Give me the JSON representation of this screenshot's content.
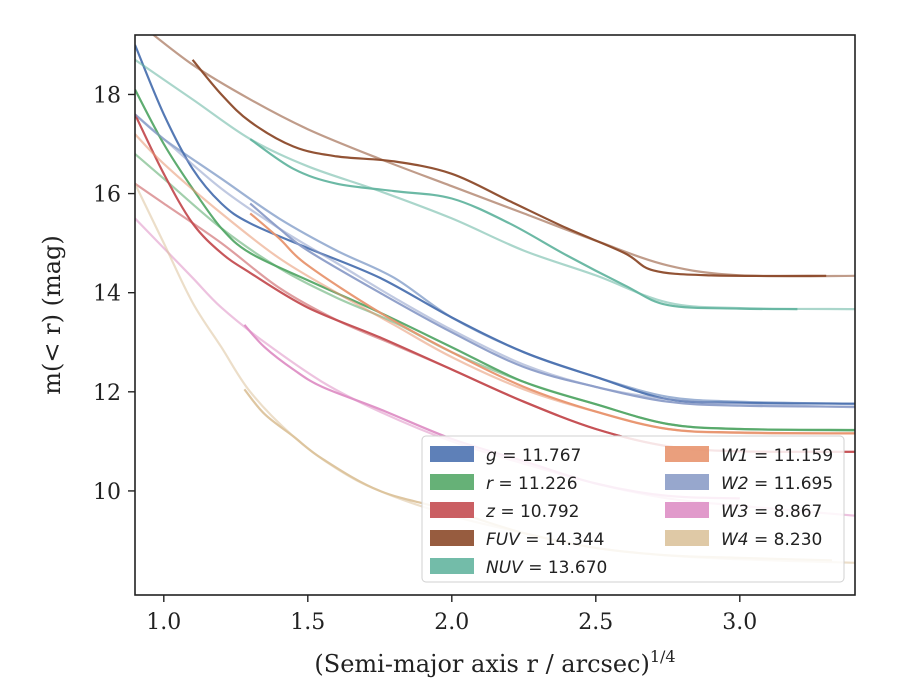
{
  "chart_data": {
    "type": "line",
    "xlabel": "(Semi-major axis r / arcsec)",
    "xlabel_sup": "1/4",
    "ylabel": "m(< r) (mag)",
    "xlim": [
      0.9,
      3.4
    ],
    "ylim": [
      19.2,
      7.9
    ],
    "y_inverted": true,
    "x_ticks": [
      1.0,
      1.5,
      2.0,
      2.5,
      3.0
    ],
    "x_tick_labels": [
      "1.0",
      "1.5",
      "2.0",
      "2.5",
      "3.0"
    ],
    "y_ticks": [
      10,
      12,
      14,
      16,
      18
    ],
    "y_tick_labels": [
      "10",
      "12",
      "14",
      "16",
      "18"
    ],
    "grid": false,
    "legend_position": "lower-right",
    "series": [
      {
        "name": "g = 11.767",
        "color": "#4c72b0",
        "profile": [
          [
            0.9,
            19.0
          ],
          [
            1.0,
            17.6
          ],
          [
            1.1,
            16.5
          ],
          [
            1.2,
            15.8
          ],
          [
            1.3,
            15.4
          ],
          [
            1.5,
            14.9
          ],
          [
            1.75,
            14.3
          ],
          [
            2.0,
            13.5
          ],
          [
            2.25,
            12.8
          ],
          [
            2.5,
            12.3
          ],
          [
            2.75,
            11.85
          ],
          [
            3.0,
            11.78
          ],
          [
            3.4,
            11.76
          ]
        ],
        "fit": [
          [
            0.9,
            17.6
          ],
          [
            1.0,
            17.1
          ],
          [
            1.2,
            16.3
          ],
          [
            1.4,
            15.5
          ],
          [
            1.6,
            14.85
          ],
          [
            1.8,
            14.3
          ],
          [
            2.0,
            13.5
          ],
          [
            2.25,
            12.8
          ],
          [
            2.5,
            12.3
          ],
          [
            2.75,
            11.9
          ],
          [
            3.0,
            11.8
          ],
          [
            3.4,
            11.76
          ]
        ]
      },
      {
        "name": "r = 11.226",
        "color": "#55a868",
        "profile": [
          [
            0.9,
            18.1
          ],
          [
            1.0,
            17.0
          ],
          [
            1.1,
            16.1
          ],
          [
            1.2,
            15.3
          ],
          [
            1.3,
            14.8
          ],
          [
            1.5,
            14.25
          ],
          [
            1.75,
            13.6
          ],
          [
            2.0,
            12.9
          ],
          [
            2.25,
            12.2
          ],
          [
            2.5,
            11.75
          ],
          [
            2.75,
            11.35
          ],
          [
            3.0,
            11.25
          ],
          [
            3.4,
            11.23
          ]
        ],
        "fit": [
          [
            0.9,
            16.8
          ],
          [
            1.0,
            16.3
          ],
          [
            1.2,
            15.3
          ],
          [
            1.4,
            14.5
          ],
          [
            1.6,
            13.9
          ],
          [
            1.8,
            13.4
          ],
          [
            2.0,
            12.8
          ],
          [
            2.25,
            12.2
          ],
          [
            2.5,
            11.75
          ],
          [
            2.75,
            11.35
          ],
          [
            3.0,
            11.25
          ],
          [
            3.4,
            11.22
          ]
        ]
      },
      {
        "name": "z = 10.792",
        "color": "#c44e52",
        "profile": [
          [
            0.9,
            17.6
          ],
          [
            1.0,
            16.4
          ],
          [
            1.1,
            15.4
          ],
          [
            1.2,
            14.8
          ],
          [
            1.3,
            14.4
          ],
          [
            1.5,
            13.7
          ],
          [
            1.75,
            13.1
          ],
          [
            2.0,
            12.45
          ],
          [
            2.25,
            11.8
          ],
          [
            2.5,
            11.25
          ],
          [
            2.75,
            10.9
          ],
          [
            3.0,
            10.8
          ],
          [
            3.4,
            10.79
          ]
        ],
        "fit": [
          [
            0.9,
            16.2
          ],
          [
            1.0,
            15.8
          ],
          [
            1.2,
            15.0
          ],
          [
            1.4,
            14.1
          ],
          [
            1.6,
            13.45
          ],
          [
            1.8,
            12.95
          ],
          [
            2.0,
            12.45
          ],
          [
            2.25,
            11.8
          ],
          [
            2.5,
            11.25
          ],
          [
            2.75,
            10.9
          ],
          [
            3.0,
            10.8
          ],
          [
            3.4,
            10.79
          ]
        ]
      },
      {
        "name": "FUV = 14.344",
        "color": "#8c4a2a",
        "profile": [
          [
            1.1,
            18.7
          ],
          [
            1.2,
            18.0
          ],
          [
            1.3,
            17.45
          ],
          [
            1.45,
            16.95
          ],
          [
            1.6,
            16.75
          ],
          [
            1.8,
            16.65
          ],
          [
            2.0,
            16.4
          ],
          [
            2.2,
            15.85
          ],
          [
            2.4,
            15.3
          ],
          [
            2.6,
            14.8
          ],
          [
            2.7,
            14.45
          ],
          [
            2.9,
            14.35
          ],
          [
            3.3,
            14.34
          ]
        ],
        "fit": [
          [
            0.9,
            19.5
          ],
          [
            1.1,
            18.6
          ],
          [
            1.3,
            17.9
          ],
          [
            1.5,
            17.3
          ],
          [
            1.75,
            16.7
          ],
          [
            2.0,
            16.15
          ],
          [
            2.25,
            15.6
          ],
          [
            2.5,
            15.05
          ],
          [
            2.75,
            14.55
          ],
          [
            3.0,
            14.35
          ],
          [
            3.4,
            14.34
          ]
        ]
      },
      {
        "name": "NUV = 13.670",
        "color": "#64b5a0",
        "profile": [
          [
            1.3,
            17.1
          ],
          [
            1.45,
            16.5
          ],
          [
            1.6,
            16.2
          ],
          [
            1.8,
            16.05
          ],
          [
            2.0,
            15.9
          ],
          [
            2.2,
            15.4
          ],
          [
            2.4,
            14.75
          ],
          [
            2.6,
            14.15
          ],
          [
            2.75,
            13.75
          ],
          [
            3.0,
            13.68
          ],
          [
            3.2,
            13.67
          ]
        ],
        "fit": [
          [
            0.9,
            18.7
          ],
          [
            1.1,
            17.9
          ],
          [
            1.3,
            17.1
          ],
          [
            1.5,
            16.55
          ],
          [
            1.75,
            16.05
          ],
          [
            2.0,
            15.5
          ],
          [
            2.25,
            14.85
          ],
          [
            2.5,
            14.35
          ],
          [
            2.75,
            13.8
          ],
          [
            3.0,
            13.69
          ],
          [
            3.4,
            13.67
          ]
        ]
      },
      {
        "name": "W1 = 11.159",
        "color": "#e8956f",
        "profile": [
          [
            1.3,
            15.6
          ],
          [
            1.4,
            15.1
          ],
          [
            1.5,
            14.55
          ],
          [
            1.75,
            13.6
          ],
          [
            2.0,
            12.8
          ],
          [
            2.25,
            12.1
          ],
          [
            2.5,
            11.6
          ],
          [
            2.75,
            11.25
          ],
          [
            3.0,
            11.18
          ],
          [
            3.4,
            11.16
          ]
        ],
        "fit": [
          [
            0.9,
            17.2
          ],
          [
            1.0,
            16.6
          ],
          [
            1.2,
            15.6
          ],
          [
            1.4,
            14.7
          ],
          [
            1.6,
            14.0
          ],
          [
            1.8,
            13.35
          ],
          [
            2.0,
            12.7
          ],
          [
            2.25,
            12.05
          ],
          [
            2.5,
            11.6
          ],
          [
            2.75,
            11.25
          ],
          [
            3.0,
            11.17
          ],
          [
            3.4,
            11.16
          ]
        ]
      },
      {
        "name": "W2 = 11.695",
        "color": "#8c9dc8",
        "profile": [
          [
            1.3,
            15.8
          ],
          [
            1.4,
            15.3
          ],
          [
            1.5,
            14.85
          ],
          [
            1.75,
            14.0
          ],
          [
            2.0,
            13.2
          ],
          [
            2.25,
            12.5
          ],
          [
            2.5,
            12.1
          ],
          [
            2.75,
            11.8
          ],
          [
            3.0,
            11.72
          ],
          [
            3.4,
            11.7
          ]
        ],
        "fit": [
          [
            0.9,
            17.6
          ],
          [
            1.0,
            17.1
          ],
          [
            1.2,
            16.1
          ],
          [
            1.4,
            15.3
          ],
          [
            1.6,
            14.6
          ],
          [
            1.8,
            13.9
          ],
          [
            2.0,
            13.25
          ],
          [
            2.25,
            12.55
          ],
          [
            2.5,
            12.1
          ],
          [
            2.75,
            11.85
          ],
          [
            3.0,
            11.75
          ],
          [
            3.4,
            11.69
          ]
        ]
      },
      {
        "name": "W3 = 8.867",
        "color": "#de8fc5",
        "profile": [
          [
            1.28,
            13.35
          ],
          [
            1.35,
            12.9
          ],
          [
            1.45,
            12.45
          ],
          [
            1.55,
            12.1
          ],
          [
            1.75,
            11.65
          ],
          [
            2.0,
            11.05
          ],
          [
            2.25,
            10.6
          ],
          [
            2.5,
            10.15
          ],
          [
            2.75,
            9.9
          ],
          [
            3.0,
            9.85
          ]
        ],
        "fit": [
          [
            0.9,
            15.5
          ],
          [
            1.0,
            14.9
          ],
          [
            1.1,
            14.3
          ],
          [
            1.2,
            13.7
          ],
          [
            1.35,
            13.0
          ],
          [
            1.55,
            12.2
          ],
          [
            1.75,
            11.6
          ],
          [
            2.0,
            11.0
          ],
          [
            2.25,
            10.55
          ],
          [
            2.5,
            10.15
          ],
          [
            2.75,
            9.85
          ],
          [
            3.0,
            9.7
          ],
          [
            3.4,
            9.5
          ]
        ]
      },
      {
        "name": "W4 = 8.230",
        "color": "#dcc39c",
        "profile": [
          [
            1.28,
            12.05
          ],
          [
            1.35,
            11.55
          ],
          [
            1.45,
            11.1
          ],
          [
            1.55,
            10.65
          ],
          [
            1.75,
            10.0
          ],
          [
            2.0,
            9.6
          ],
          [
            2.25,
            9.15
          ],
          [
            2.5,
            8.85
          ],
          [
            2.75,
            8.7
          ],
          [
            3.0,
            8.65
          ],
          [
            3.32,
            8.6
          ]
        ],
        "fit": [
          [
            0.9,
            16.2
          ],
          [
            1.0,
            15.0
          ],
          [
            1.1,
            13.8
          ],
          [
            1.2,
            12.9
          ],
          [
            1.3,
            12.0
          ],
          [
            1.45,
            11.1
          ],
          [
            1.6,
            10.45
          ],
          [
            1.75,
            10.0
          ],
          [
            2.0,
            9.5
          ],
          [
            2.25,
            9.15
          ],
          [
            2.5,
            8.85
          ],
          [
            2.75,
            8.7
          ],
          [
            3.0,
            8.62
          ],
          [
            3.4,
            8.55
          ]
        ]
      }
    ]
  }
}
